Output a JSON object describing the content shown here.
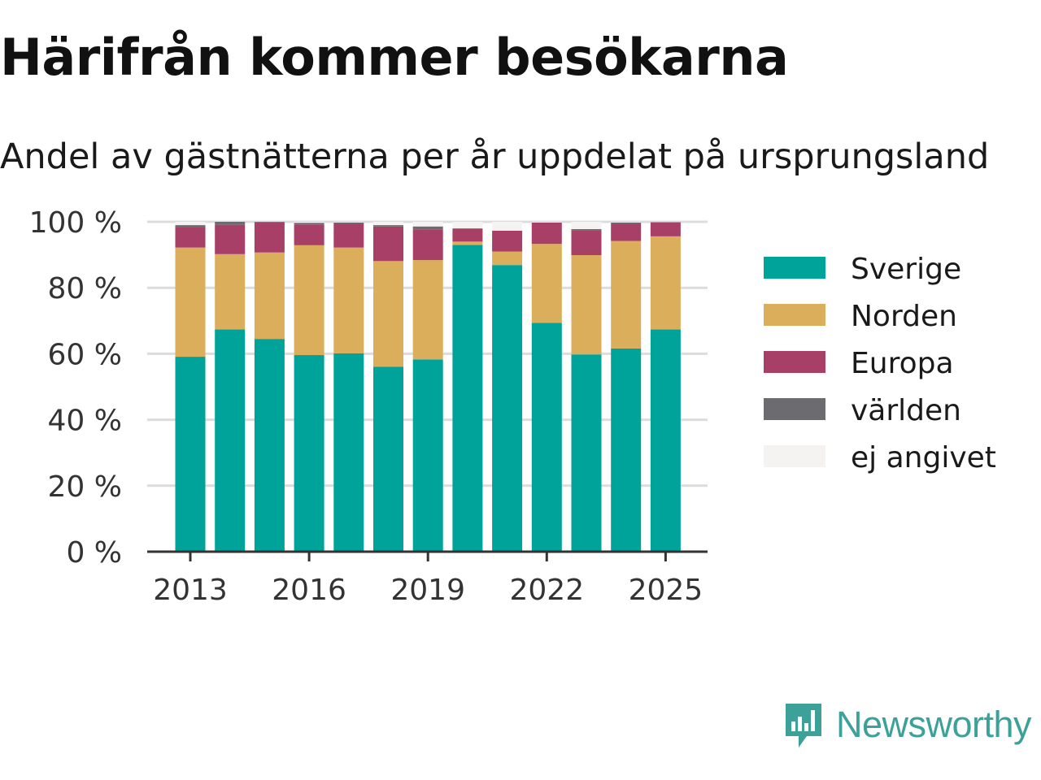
{
  "title": "Härifrån kommer besökarna",
  "subtitle": "Andel av gästnätterna per år uppdelat på ursprungsland",
  "chart_data": {
    "type": "bar",
    "stacked": true,
    "title": "Härifrån kommer besökarna",
    "subtitle": "Andel av gästnätterna per år uppdelat på ursprungsland",
    "categories": [
      "2013",
      "2014",
      "2015",
      "2016",
      "2017",
      "2018",
      "2019",
      "2020",
      "2021",
      "2022",
      "2023",
      "2024",
      "2025"
    ],
    "x_tick_labels": [
      "2013",
      "2016",
      "2019",
      "2022",
      "2025"
    ],
    "y_tick_labels": [
      "0 %",
      "20 %",
      "40 %",
      "60 %",
      "80 %",
      "100 %"
    ],
    "y_ticks": [
      0,
      20,
      40,
      60,
      80,
      100
    ],
    "ylim": [
      0,
      100
    ],
    "grid": true,
    "legend_position": "right",
    "series": [
      {
        "name": "Sverige",
        "color": "#00a39a",
        "values": [
          59.1,
          67.4,
          64.5,
          59.6,
          60.1,
          56.1,
          58.3,
          93.0,
          86.9,
          69.4,
          59.8,
          61.6,
          67.4
        ]
      },
      {
        "name": "Norden",
        "color": "#dbae5c",
        "values": [
          33.1,
          22.8,
          26.2,
          33.3,
          32.1,
          32.0,
          30.1,
          1.0,
          4.1,
          23.9,
          30.1,
          32.6,
          28.2
        ]
      },
      {
        "name": "Europa",
        "color": "#a83f66",
        "values": [
          6.3,
          8.9,
          9.1,
          6.3,
          7.3,
          10.5,
          9.3,
          4.0,
          6.3,
          6.5,
          7.6,
          5.3,
          4.3
        ]
      },
      {
        "name": "världen",
        "color": "#6c6b70",
        "values": [
          0.5,
          0.9,
          0.2,
          0.5,
          0.3,
          0.4,
          0.9,
          0,
          0,
          0,
          0.3,
          0.3,
          0
        ]
      },
      {
        "name": "ej angivet",
        "color": "#f4f3f1",
        "values": [
          1.0,
          0,
          0,
          0.3,
          0.2,
          1.0,
          1.4,
          2.0,
          2.7,
          0.2,
          2.2,
          0.2,
          0.1
        ]
      }
    ]
  },
  "brand": {
    "name": "Newsworthy",
    "color": "#3ba199"
  }
}
